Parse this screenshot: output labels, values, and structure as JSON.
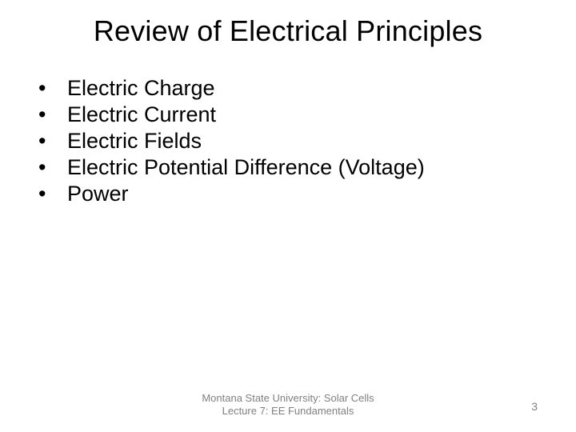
{
  "title": "Review of Electrical Principles",
  "bullets": [
    "Electric Charge",
    "Electric Current",
    "Electric Fields",
    "Electric Potential Difference (Voltage)",
    "Power"
  ],
  "footer_line1": "Montana State University: Solar Cells",
  "footer_line2": "Lecture 7: EE Fundamentals",
  "page_number": "3",
  "styling": {
    "background_color": "#ffffff",
    "title_fontsize": 36,
    "title_color": "#000000",
    "bullet_fontsize": 27,
    "bullet_color": "#000000",
    "footer_fontsize": 13,
    "footer_color": "#808080",
    "page_number_fontsize": 14,
    "page_number_color": "#808080",
    "font_family": "Arial"
  }
}
